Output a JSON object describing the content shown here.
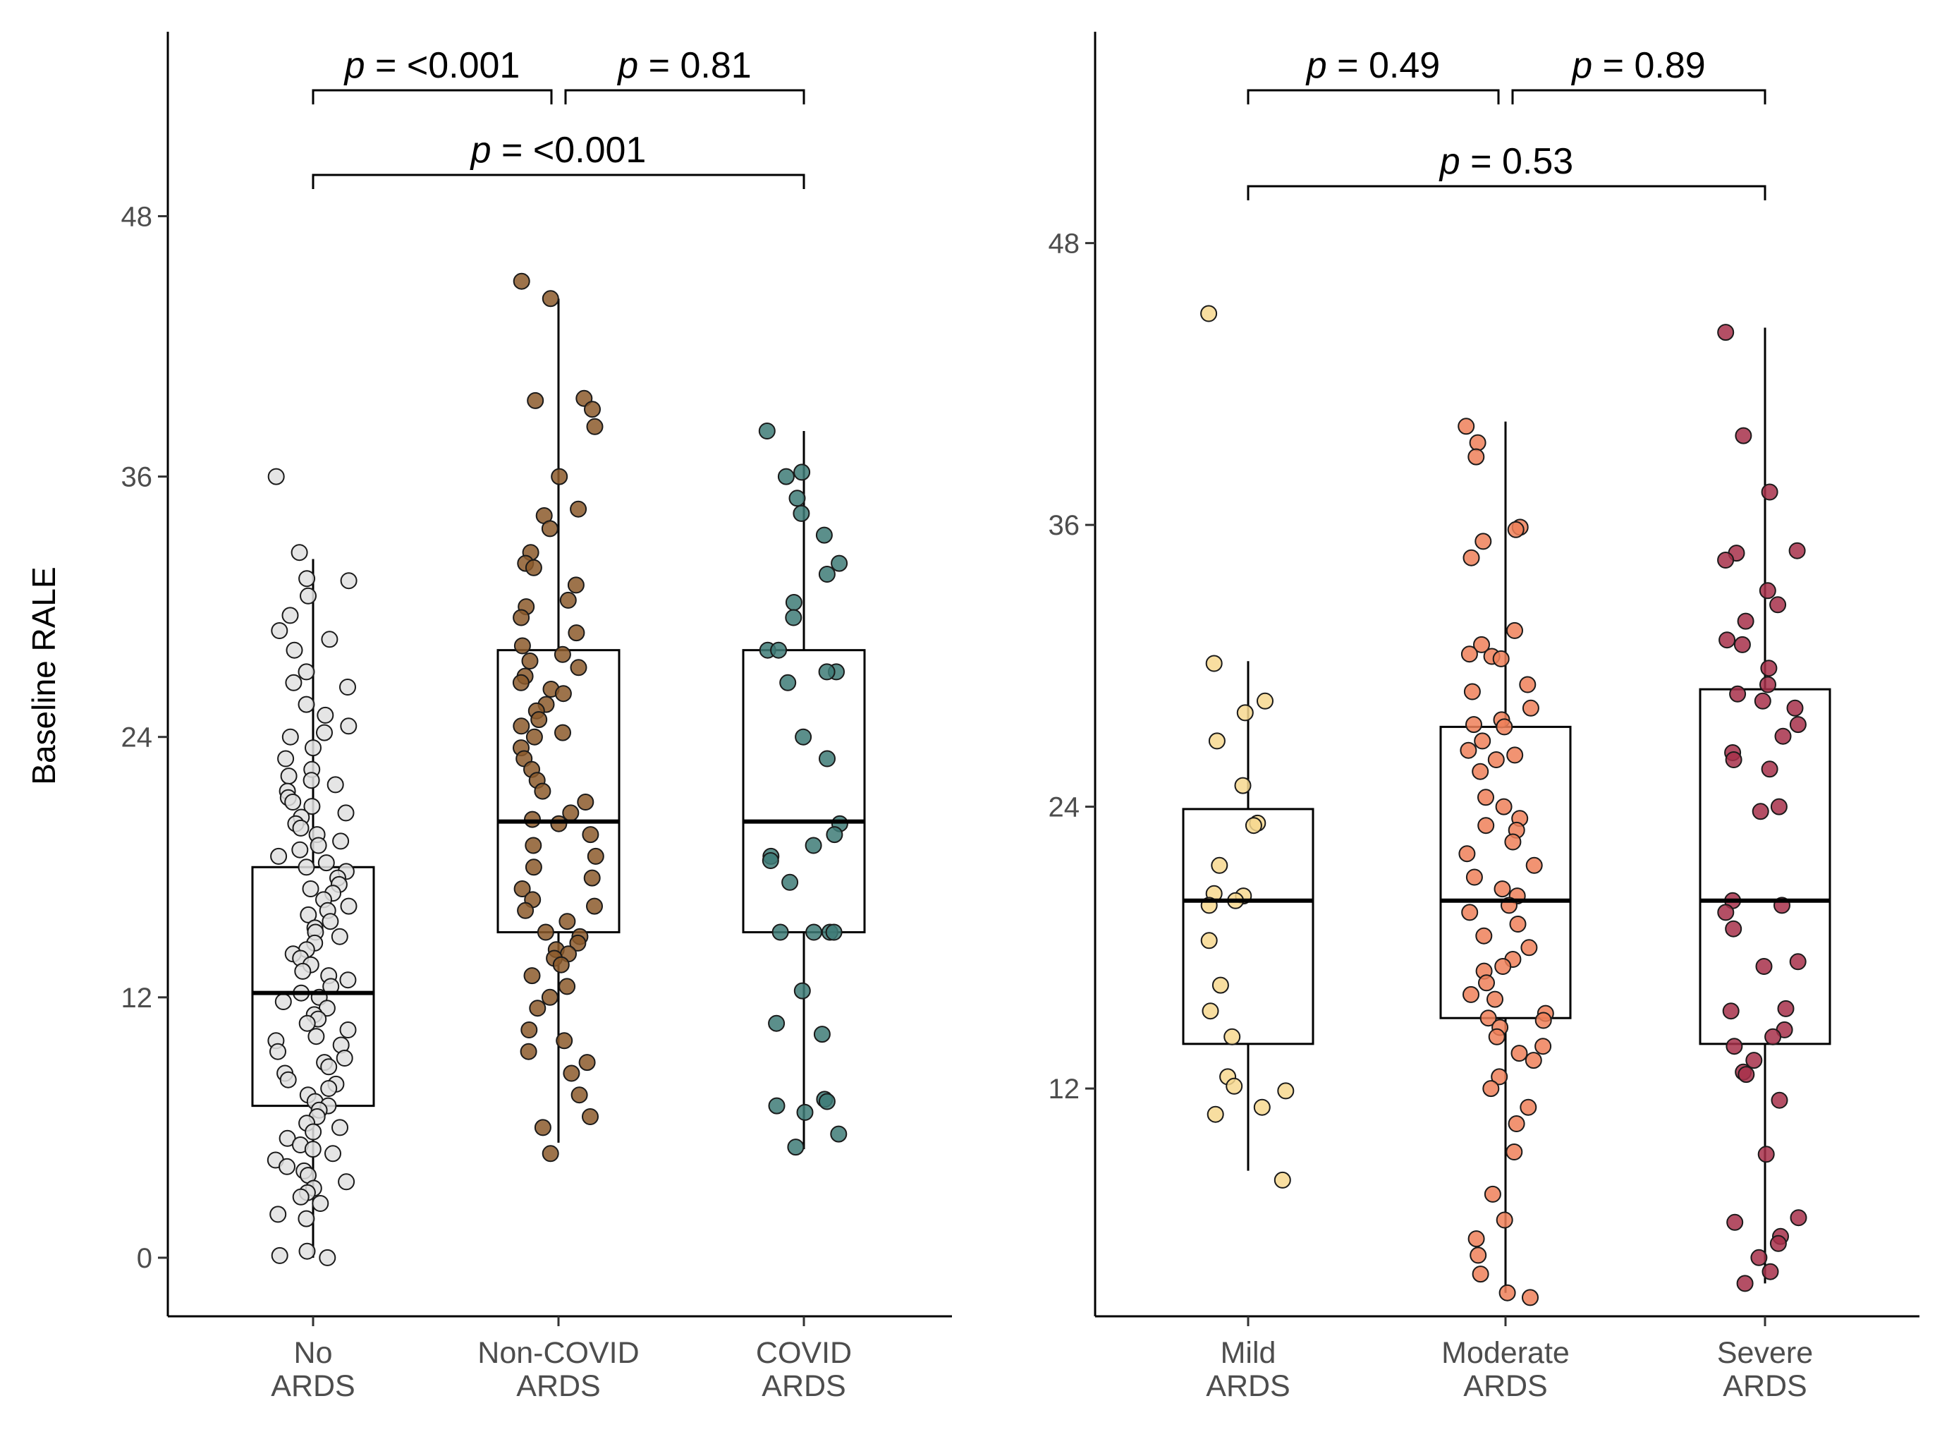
{
  "figure": {
    "ylabel": "Baseline RALE"
  },
  "chart_data": [
    {
      "type": "box",
      "ylabel": "Baseline RALE",
      "ylim": [
        -2.7,
        56.5
      ],
      "yticks": [
        0,
        12,
        24,
        36,
        48
      ],
      "grid": false,
      "categories": [
        {
          "label_line1": "No",
          "label_line2": "ARDS"
        },
        {
          "label_line1": "Non-COVID",
          "label_line2": "ARDS"
        },
        {
          "label_line1": "COVID",
          "label_line2": "ARDS"
        }
      ],
      "series": [
        {
          "color": "#e0e0e0",
          "q1": 7,
          "median": 12.2,
          "q3": 18,
          "whisker_low": 0,
          "whisker_high": 32.2,
          "points": [
            36,
            32.5,
            31.3,
            31.2,
            30.5,
            29.6,
            28.9,
            28.5,
            28,
            27,
            26.5,
            26.3,
            25.5,
            25,
            24.5,
            24.2,
            24,
            23.5,
            23,
            22.5,
            22.2,
            22,
            21.8,
            21.5,
            21.2,
            21,
            20.8,
            20.5,
            20.3,
            20,
            19.8,
            19.5,
            19.2,
            19,
            18.8,
            18.5,
            18.2,
            18,
            17.8,
            17.5,
            17.2,
            17,
            16.8,
            16.5,
            16.2,
            16,
            15.8,
            15.5,
            15.2,
            15,
            14.8,
            14.5,
            14.2,
            14,
            13.8,
            13.5,
            13.2,
            13,
            12.8,
            12.5,
            12.2,
            12,
            11.8,
            11.5,
            11.2,
            11,
            10.8,
            10.5,
            10.2,
            10,
            9.8,
            9.5,
            9.2,
            9,
            8.8,
            8.5,
            8.2,
            8,
            7.8,
            7.5,
            7.2,
            7,
            6.8,
            6.5,
            6.2,
            6,
            5.8,
            5.5,
            5.2,
            5,
            4.8,
            4.5,
            4.2,
            4,
            3.8,
            3.5,
            3.2,
            3,
            2.8,
            2.5,
            2,
            1.8,
            0.3,
            0.1,
            0
          ]
        },
        {
          "color": "#8c5a2b",
          "q1": 15,
          "median": 20.1,
          "q3": 28,
          "whisker_low": 5.3,
          "whisker_high": 44.2,
          "points": [
            45,
            44.2,
            39.6,
            39.5,
            39.1,
            38.3,
            36,
            34.5,
            34.2,
            33.6,
            32.5,
            32,
            31.8,
            31,
            30.3,
            30,
            29.5,
            28.8,
            28.2,
            27.8,
            27.5,
            27.2,
            26.8,
            26.5,
            26.2,
            26,
            25.5,
            25.2,
            24.8,
            24.5,
            24.2,
            24,
            23.5,
            23,
            22.5,
            22,
            21.5,
            21,
            20.5,
            20.2,
            20,
            19.5,
            19,
            18.5,
            18,
            17.5,
            17,
            16.5,
            16.2,
            16,
            15.5,
            15,
            14.8,
            14.5,
            14.2,
            14,
            13.8,
            13.5,
            13,
            12.5,
            12,
            11.5,
            10.5,
            10,
            9.5,
            9,
            8.5,
            7.5,
            6.5,
            6,
            4.8
          ]
        },
        {
          "color": "#3e7b77",
          "q1": 15,
          "median": 20.1,
          "q3": 28,
          "whisker_low": 5,
          "whisker_high": 38.1,
          "points": [
            38.1,
            36.2,
            36,
            35,
            34.3,
            33.3,
            32,
            31.5,
            30.2,
            29.5,
            28,
            28,
            27,
            27,
            26.5,
            24,
            23,
            20,
            19.5,
            19,
            18.5,
            18.3,
            17.3,
            15,
            15,
            15,
            15,
            12.3,
            10.8,
            10.3,
            7.3,
            7.2,
            7,
            6.7,
            5.7,
            5.1
          ]
        }
      ],
      "brackets": [
        {
          "from": 0,
          "to": 1,
          "label": "p = <0.001"
        },
        {
          "from": 1,
          "to": 2,
          "label": "p = 0.81"
        },
        {
          "from": 0,
          "to": 2,
          "label": "p = <0.001"
        }
      ]
    },
    {
      "type": "box",
      "ylabel": "",
      "ylim": [
        2.3,
        57
      ],
      "yticks": [
        12,
        24,
        36,
        48
      ],
      "grid": false,
      "categories": [
        {
          "label_line1": "Mild",
          "label_line2": "ARDS"
        },
        {
          "label_line1": "Moderate",
          "label_line2": "ARDS"
        },
        {
          "label_line1": "Severe",
          "label_line2": "ARDS"
        }
      ],
      "series": [
        {
          "color": "#f7d88f",
          "q1": 13.9,
          "median": 20,
          "q3": 23.9,
          "whisker_low": 8.5,
          "whisker_high": 30.2,
          "points": [
            45,
            30.1,
            28.5,
            28,
            26.8,
            24.9,
            23.3,
            23.2,
            21.5,
            20.3,
            20.2,
            20,
            19.8,
            18.3,
            16.4,
            15.3,
            14.2,
            12.5,
            12.1,
            11.9,
            11.2,
            10.9,
            8.1
          ]
        },
        {
          "color": "#ee8059",
          "q1": 15,
          "median": 20,
          "q3": 27.4,
          "whisker_low": 3.3,
          "whisker_high": 40.4,
          "points": [
            40.2,
            39.5,
            38.9,
            35.9,
            35.8,
            35.3,
            34.6,
            31.5,
            30.9,
            30.5,
            30.4,
            30.3,
            29.2,
            28.9,
            28.2,
            27.7,
            27.5,
            27.4,
            26.8,
            26.4,
            26.2,
            26,
            25.5,
            24.4,
            24,
            23.5,
            23.2,
            23,
            22.5,
            22,
            21.5,
            21,
            20.5,
            20.2,
            19.8,
            19.5,
            19,
            18.5,
            18,
            17.5,
            17.2,
            17,
            16.5,
            16,
            15.8,
            15.2,
            15,
            14.9,
            14.6,
            14.2,
            13.8,
            13.5,
            13.2,
            12.5,
            12,
            11.2,
            10.5,
            9.3,
            7.5,
            6.4,
            5.6,
            4.9,
            4.1,
            3.3,
            3.1
          ]
        },
        {
          "color": "#a7304a",
          "q1": 13.9,
          "median": 20,
          "q3": 29,
          "whisker_low": 3.7,
          "whisker_high": 44.4,
          "points": [
            44.2,
            39.8,
            37.4,
            34.9,
            34.8,
            34.5,
            33.2,
            32.6,
            31.9,
            31.1,
            30.9,
            29.9,
            29.2,
            28.8,
            28.5,
            28.2,
            27.5,
            27,
            26.3,
            26,
            25.6,
            24,
            23.8,
            20,
            19.8,
            19.5,
            18.8,
            17.4,
            17.2,
            15.4,
            15.3,
            14.5,
            14.2,
            13.8,
            13.2,
            12.7,
            12.6,
            11.5,
            9.2,
            6.5,
            6.3,
            5.7,
            5.4,
            4.8,
            4.2,
            3.7
          ]
        }
      ],
      "brackets": [
        {
          "from": 0,
          "to": 1,
          "label": "p = 0.49"
        },
        {
          "from": 1,
          "to": 2,
          "label": "p = 0.89"
        },
        {
          "from": 0,
          "to": 2,
          "label": "p = 0.53"
        }
      ]
    }
  ]
}
